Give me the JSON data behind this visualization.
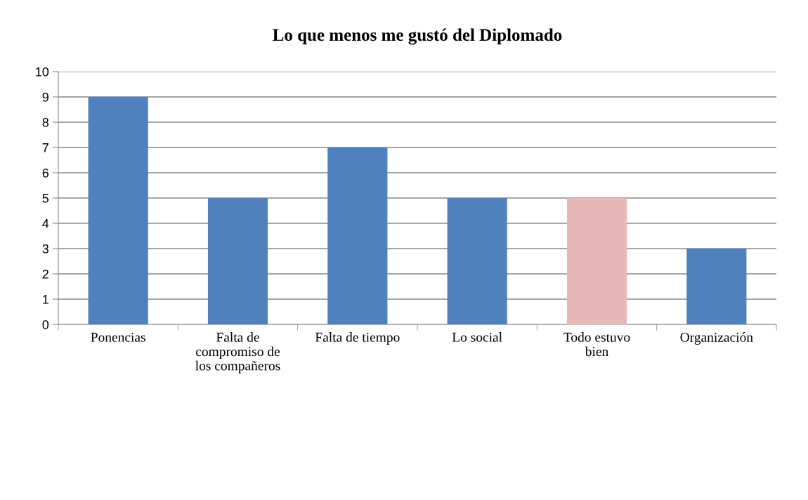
{
  "chart_data": {
    "type": "bar",
    "title": "Lo que menos me gustó del Diplomado",
    "categories": [
      "Ponencias",
      "Falta de compromiso de los compañeros",
      "Falta de tiempo",
      "Lo social",
      "Todo estuvo bien",
      "Organización"
    ],
    "values": [
      9,
      5,
      7,
      5,
      5,
      3
    ],
    "colors": [
      "#4f81bd",
      "#4f81bd",
      "#4f81bd",
      "#4f81bd",
      "#e6b9b8",
      "#4f81bd"
    ],
    "ylim": [
      0,
      10
    ],
    "yticks": [
      0,
      1,
      2,
      3,
      4,
      5,
      6,
      7,
      8,
      9,
      10
    ],
    "grid": "y",
    "legend": false
  }
}
